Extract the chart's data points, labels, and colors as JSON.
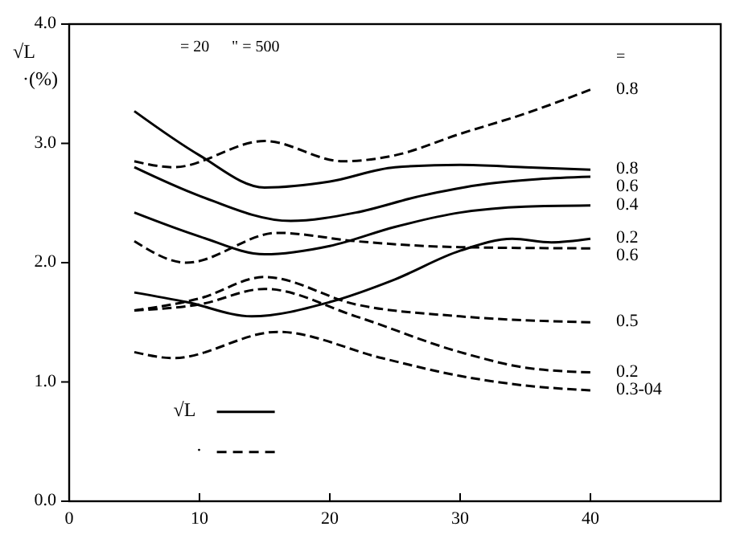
{
  "chart_data": {
    "type": "line",
    "ylabel": "√L\n·(%)",
    "xlim": [
      0,
      50
    ],
    "ylim": [
      0,
      4
    ],
    "xticks": [
      0,
      10,
      20,
      30,
      40
    ],
    "yticks": [
      {
        "value": 0,
        "label": "0.0"
      },
      {
        "value": 1,
        "label": "1.0"
      },
      {
        "value": 2,
        "label": "2.0"
      },
      {
        "value": 3,
        "label": "3.0"
      },
      {
        "value": 4,
        "label": "4.0"
      }
    ],
    "grid": false,
    "legend": "right",
    "marker": "none",
    "annotations": [
      "= 20",
      "\" = 500",
      "=",
      "√L",
      "·"
    ],
    "series": [
      {
        "name": "0.8",
        "color": "#000000",
        "line_style": "solid",
        "x": [
          5,
          10,
          15,
          20,
          25,
          30,
          35,
          40
        ],
        "values": [
          3.27,
          2.9,
          2.63,
          2.68,
          2.8,
          2.82,
          2.8,
          2.78
        ]
      },
      {
        "name": "0.6",
        "color": "#000000",
        "line_style": "solid",
        "x": [
          5,
          10,
          17,
          22,
          27,
          32,
          36,
          40
        ],
        "values": [
          2.8,
          2.56,
          2.35,
          2.42,
          2.56,
          2.66,
          2.7,
          2.72
        ]
      },
      {
        "name": "0.4",
        "color": "#000000",
        "line_style": "solid",
        "x": [
          5,
          10,
          15,
          20,
          25,
          30,
          35,
          40
        ],
        "values": [
          2.42,
          2.22,
          2.07,
          2.14,
          2.3,
          2.42,
          2.47,
          2.48
        ]
      },
      {
        "name": "0.2",
        "color": "#000000",
        "line_style": "solid",
        "x": [
          5,
          9,
          14,
          20,
          25,
          30,
          34,
          37,
          40
        ],
        "values": [
          1.75,
          1.67,
          1.55,
          1.67,
          1.86,
          2.1,
          2.2,
          2.17,
          2.2
        ]
      },
      {
        "name": "0.8",
        "color": "#000000",
        "line_style": "dashed",
        "x": [
          5,
          8,
          15,
          21,
          25,
          30,
          35,
          40
        ],
        "values": [
          2.85,
          2.8,
          3.02,
          2.85,
          2.9,
          3.08,
          3.25,
          3.45
        ]
      },
      {
        "name": "0.6",
        "color": "#000000",
        "line_style": "dashed",
        "x": [
          5,
          9,
          16,
          22,
          30,
          40
        ],
        "values": [
          2.18,
          2.0,
          2.25,
          2.18,
          2.13,
          2.12
        ]
      },
      {
        "name": "0.5",
        "color": "#000000",
        "line_style": "dashed",
        "x": [
          5,
          10,
          15,
          22,
          30,
          40
        ],
        "values": [
          1.6,
          1.7,
          1.88,
          1.65,
          1.55,
          1.5
        ]
      },
      {
        "name": "0.2",
        "color": "#000000",
        "line_style": "dashed",
        "x": [
          5,
          10,
          15,
          22,
          30,
          35,
          40
        ],
        "values": [
          1.6,
          1.65,
          1.78,
          1.55,
          1.25,
          1.12,
          1.08
        ]
      },
      {
        "name": "0.3-04",
        "color": "#000000",
        "line_style": "dashed",
        "x": [
          5,
          8,
          16,
          24,
          30,
          35,
          40
        ],
        "values": [
          1.25,
          1.2,
          1.42,
          1.2,
          1.05,
          0.97,
          0.93
        ]
      }
    ]
  }
}
